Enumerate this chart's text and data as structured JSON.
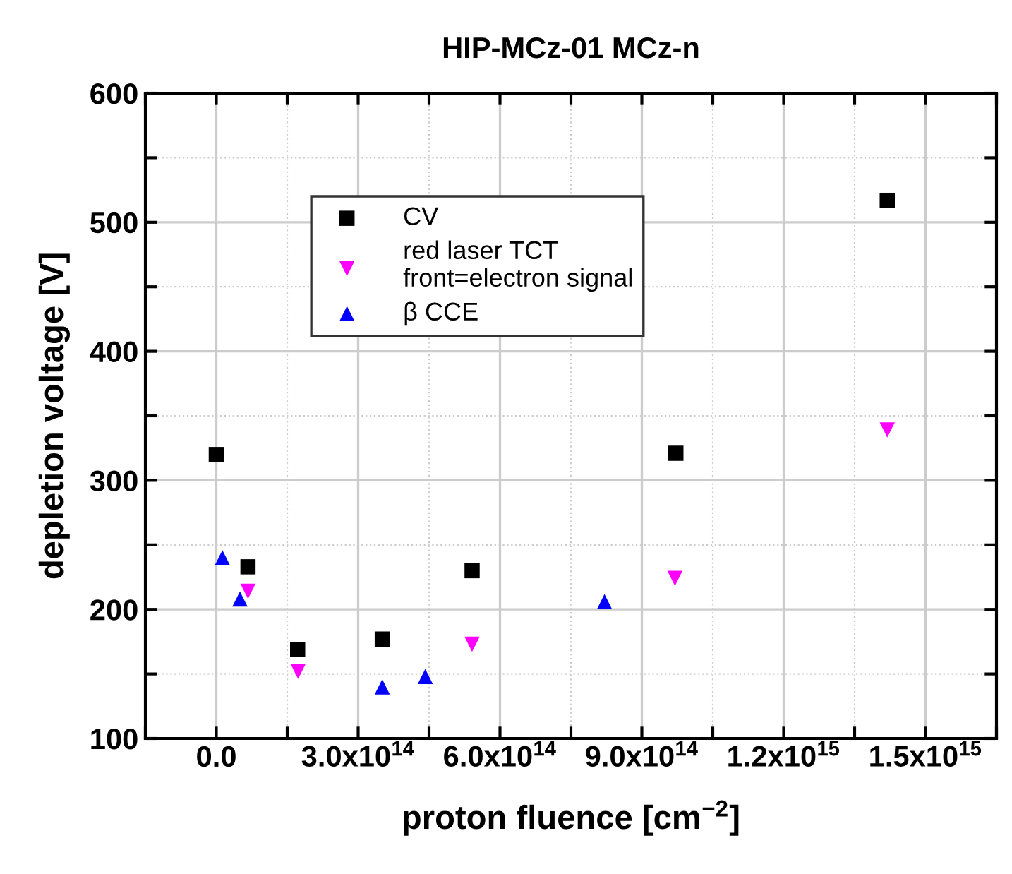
{
  "chart_data": {
    "type": "scatter",
    "title": "HIP-MCz-01 MCz-n",
    "xlabel": "proton fluence [cm$^{−2}$]",
    "ylabel": "depletion voltage [V]",
    "series": [
      {
        "name": "CV",
        "color": "#000000",
        "marker": "square",
        "x": [
          0,
          67000000000000.0,
          172000000000000.0,
          351000000000000.0,
          541000000000000.0,
          972000000000000.0,
          1419000000000000.0
        ],
        "values": [
          320,
          233,
          169,
          177,
          230,
          321,
          517
        ]
      },
      {
        "name": "red laser TCT\nfront=electron signal",
        "color": "#ff00ff",
        "marker": "triangle-down",
        "x": [
          67000000000000.0,
          173000000000000.0,
          541000000000000.0,
          970000000000000.0,
          1419000000000000.0
        ],
        "values": [
          214,
          152,
          173,
          224,
          339
        ]
      },
      {
        "name": "β CCE",
        "color": "#0000ff",
        "marker": "triangle",
        "x": [
          13000000000000.0,
          50000000000000.0,
          351000000000000.0,
          442000000000000.0,
          821000000000000.0
        ],
        "values": [
          240,
          208,
          140,
          148,
          206
        ]
      }
    ],
    "xlim": [
      -150000000000000.0,
      1650000000000000.0
    ],
    "xticks": [
      {
        "value": -150000000000000.0,
        "label": null
      },
      {
        "value": 0,
        "label": "0.0"
      },
      {
        "value": 150000000000000.0,
        "label": null
      },
      {
        "value": 300000000000000.0,
        "label": "3.0x10$^{14}$"
      },
      {
        "value": 450000000000000.0,
        "label": null
      },
      {
        "value": 600000000000000.0,
        "label": "6.0x10$^{14}$"
      },
      {
        "value": 750000000000000.0,
        "label": null
      },
      {
        "value": 900000000000000.0,
        "label": "9.0x10$^{14}$"
      },
      {
        "value": 1050000000000000.0,
        "label": null
      },
      {
        "value": 1200000000000000.0,
        "label": "1.2x10$^{15}$"
      },
      {
        "value": 1350000000000000.0,
        "label": null
      },
      {
        "value": 1500000000000000.0,
        "label": "1.5x10$^{15}$"
      },
      {
        "value": 1650000000000000.0,
        "label": null
      }
    ],
    "ylim": [
      100,
      600
    ],
    "yticks": [
      100,
      {
        "value": 150,
        "label": null
      },
      200,
      {
        "value": 250,
        "label": null
      },
      300,
      {
        "value": 350,
        "label": null
      },
      400,
      {
        "value": 450,
        "label": null
      },
      500,
      {
        "value": 550,
        "label": null
      },
      600
    ],
    "grid": true,
    "legend": "top left"
  }
}
